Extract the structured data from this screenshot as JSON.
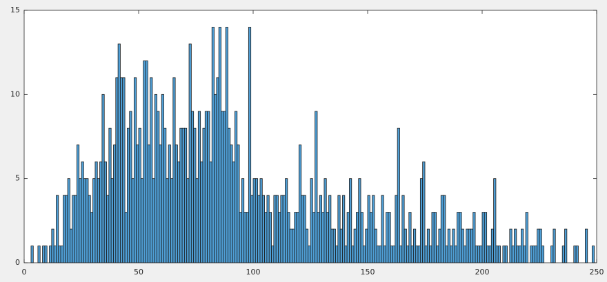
{
  "chart_data": {
    "type": "histogram",
    "bins": [
      0,
      1,
      2,
      3,
      4,
      5,
      6,
      7,
      8,
      9,
      10,
      11,
      12,
      13,
      14,
      15,
      16,
      17,
      18,
      19,
      20,
      21,
      22,
      23,
      24,
      25,
      26,
      27,
      28,
      29,
      30,
      31,
      32,
      33,
      34,
      35,
      36,
      37,
      38,
      39,
      40,
      41,
      42,
      43,
      44,
      45,
      46,
      47,
      48,
      49,
      50,
      51,
      52,
      53,
      54,
      55,
      56,
      57,
      58,
      59,
      60,
      61,
      62,
      63,
      64,
      65,
      66,
      67,
      68,
      69,
      70,
      71,
      72,
      73,
      74,
      75,
      76,
      77,
      78,
      79,
      80,
      81,
      82,
      83,
      84,
      85,
      86,
      87,
      88,
      89,
      90,
      91,
      92,
      93,
      94,
      95,
      96,
      97,
      98,
      99,
      100,
      101,
      102,
      103,
      104,
      105,
      106,
      107,
      108,
      109,
      110,
      111,
      112,
      113,
      114,
      115,
      116,
      117,
      118,
      119,
      120,
      121,
      122,
      123,
      124,
      125,
      126,
      127,
      128,
      129,
      130,
      131,
      132,
      133,
      134,
      135,
      136,
      137,
      138,
      139,
      140,
      141,
      142,
      143,
      144,
      145,
      146,
      147,
      148,
      149,
      150,
      151,
      152,
      153,
      154,
      155,
      156,
      157,
      158,
      159,
      160,
      161,
      162,
      163,
      164,
      165,
      166,
      167,
      168,
      169,
      170,
      171,
      172,
      173,
      174,
      175,
      176,
      177,
      178,
      179,
      180,
      181,
      182,
      183,
      184,
      185,
      186,
      187,
      188,
      189,
      190,
      191,
      192,
      193,
      194,
      195,
      196,
      197,
      198,
      199,
      200,
      201,
      202,
      203,
      204,
      205,
      206,
      207,
      208,
      209,
      210,
      211,
      212,
      213,
      214,
      215,
      216,
      217,
      218,
      219,
      220,
      221,
      222,
      223,
      224,
      225,
      226,
      227,
      228,
      229,
      230,
      231,
      232,
      233,
      234,
      235,
      236,
      237,
      238,
      239,
      240,
      241,
      242,
      243,
      244,
      245,
      246,
      247,
      248,
      249,
      250
    ],
    "values": [
      0,
      0,
      0,
      1,
      0,
      0,
      1,
      0,
      1,
      1,
      0,
      1,
      2,
      1,
      4,
      1,
      1,
      4,
      4,
      5,
      2,
      4,
      4,
      7,
      5,
      6,
      5,
      5,
      4,
      3,
      5,
      6,
      5,
      6,
      10,
      6,
      4,
      8,
      5,
      7,
      11,
      13,
      11,
      11,
      3,
      8,
      9,
      5,
      11,
      7,
      8,
      5,
      12,
      12,
      7,
      11,
      5,
      10,
      9,
      7,
      10,
      8,
      5,
      7,
      5,
      11,
      7,
      6,
      8,
      8,
      8,
      5,
      13,
      9,
      8,
      5,
      9,
      6,
      8,
      9,
      9,
      6,
      14,
      10,
      11,
      14,
      9,
      9,
      14,
      8,
      7,
      6,
      9,
      7,
      3,
      5,
      3,
      3,
      14,
      4,
      5,
      5,
      4,
      5,
      4,
      3,
      4,
      3,
      1,
      4,
      4,
      3,
      4,
      4,
      5,
      3,
      2,
      2,
      3,
      3,
      7,
      4,
      4,
      2,
      1,
      5,
      3,
      9,
      3,
      4,
      3,
      5,
      3,
      4,
      2,
      2,
      1,
      4,
      2,
      4,
      1,
      3,
      5,
      1,
      2,
      3,
      5,
      3,
      1,
      2,
      4,
      3,
      4,
      2,
      1,
      1,
      4,
      1,
      3,
      3,
      1,
      1,
      4,
      8,
      1,
      4,
      2,
      1,
      3,
      1,
      2,
      1,
      1,
      5,
      6,
      1,
      2,
      1,
      3,
      3,
      1,
      2,
      4,
      4,
      1,
      2,
      1,
      2,
      1,
      3,
      3,
      2,
      1,
      2,
      2,
      2,
      3,
      1,
      1,
      1,
      3,
      3,
      1,
      1,
      2,
      5,
      1,
      1,
      0,
      1,
      1,
      0,
      2,
      1,
      2,
      1,
      1,
      2,
      1,
      3,
      0,
      1,
      1,
      1,
      2,
      2,
      1,
      0,
      0,
      0,
      1,
      2,
      0,
      0,
      0,
      1,
      2,
      0,
      0,
      0,
      1,
      1,
      0,
      0,
      0,
      2,
      0,
      0,
      1,
      0
    ],
    "color": "#4f9fd6",
    "xlim": [
      0,
      250
    ],
    "xticks": [
      0,
      50,
      100,
      150,
      200,
      250
    ],
    "ylim": [
      0,
      15
    ],
    "yticks": [
      0,
      5,
      10,
      15
    ]
  }
}
